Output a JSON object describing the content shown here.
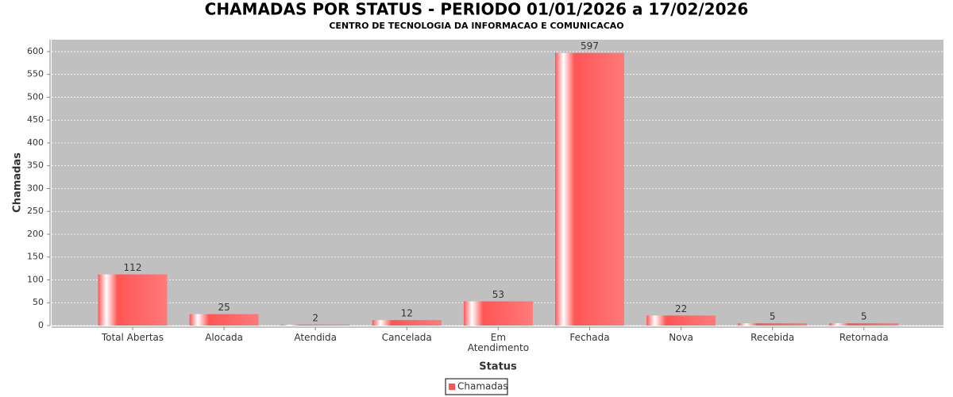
{
  "chart_data": {
    "type": "bar",
    "title": "CHAMADAS POR STATUS - PERIODO 01/01/2026 a 17/02/2026",
    "subtitle": "CENTRO DE TECNOLOGIA DA INFORMACAO E COMUNICACAO",
    "x_label": "Status",
    "y_label": "Chamadas",
    "categories": [
      "Total Abertas",
      "Alocada",
      "Atendida",
      "Cancelada",
      "Em Atendimento",
      "Fechada",
      "Nova",
      "Recebida",
      "Retornada"
    ],
    "series": [
      {
        "name": "Chamadas",
        "color": "#ff5555",
        "values": [
          112,
          25,
          2,
          12,
          53,
          597,
          22,
          5,
          5
        ]
      }
    ],
    "ylim": [
      0,
      626
    ],
    "yticks": [
      0,
      50,
      100,
      150,
      200,
      250,
      300,
      350,
      400,
      450,
      500,
      550,
      600
    ],
    "grid": true,
    "legend": "bottom"
  }
}
